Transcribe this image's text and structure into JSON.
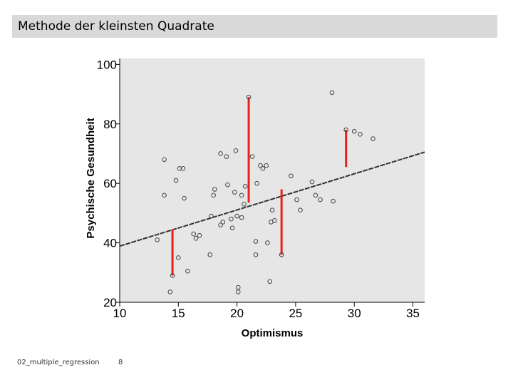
{
  "slide": {
    "title": "Methode der kleinsten Quadrate",
    "footer_left": "02_multiple_regression",
    "footer_page": "8"
  },
  "chart_data": {
    "type": "scatter",
    "title": "",
    "xlabel": "Optimismus",
    "ylabel": "Psychische Gesundheit",
    "xlim": [
      10,
      36
    ],
    "ylim": [
      20,
      102
    ],
    "xticks": [
      10,
      15,
      20,
      25,
      30,
      35
    ],
    "yticks": [
      20,
      40,
      60,
      80,
      100
    ],
    "grid": false,
    "colors": {
      "plot_background": "#e6e6e6",
      "points": "#444444",
      "regression_line": "#333333",
      "residuals": "#e8211f"
    },
    "regression_line": {
      "x": [
        10,
        36
      ],
      "y": [
        38.9,
        70.5
      ]
    },
    "residuals": [
      {
        "x": 14.5,
        "y_obs": 29,
        "y_fit": 44.7
      },
      {
        "x": 21,
        "y_obs": 89,
        "y_fit": 53.5
      },
      {
        "x": 23.8,
        "y_obs": 36,
        "y_fit": 58
      },
      {
        "x": 29.3,
        "y_obs": 78,
        "y_fit": 65.5
      }
    ],
    "points": [
      {
        "x": 13.2,
        "y": 41
      },
      {
        "x": 13.8,
        "y": 68
      },
      {
        "x": 13.8,
        "y": 56
      },
      {
        "x": 14.5,
        "y": 29
      },
      {
        "x": 14.3,
        "y": 23.5
      },
      {
        "x": 14.8,
        "y": 61
      },
      {
        "x": 15.1,
        "y": 65
      },
      {
        "x": 15.4,
        "y": 65
      },
      {
        "x": 15.0,
        "y": 35
      },
      {
        "x": 15.5,
        "y": 55
      },
      {
        "x": 15.8,
        "y": 30.5
      },
      {
        "x": 16.3,
        "y": 43
      },
      {
        "x": 16.5,
        "y": 41.5
      },
      {
        "x": 16.8,
        "y": 42.5
      },
      {
        "x": 17.7,
        "y": 36
      },
      {
        "x": 17.8,
        "y": 49
      },
      {
        "x": 18.0,
        "y": 56
      },
      {
        "x": 18.1,
        "y": 58
      },
      {
        "x": 18.6,
        "y": 70
      },
      {
        "x": 18.6,
        "y": 46
      },
      {
        "x": 18.8,
        "y": 47
      },
      {
        "x": 19.1,
        "y": 69
      },
      {
        "x": 19.2,
        "y": 59.5
      },
      {
        "x": 19.5,
        "y": 48
      },
      {
        "x": 19.6,
        "y": 45
      },
      {
        "x": 19.8,
        "y": 57
      },
      {
        "x": 19.9,
        "y": 71
      },
      {
        "x": 20.0,
        "y": 49
      },
      {
        "x": 20.1,
        "y": 25
      },
      {
        "x": 20.1,
        "y": 23.5
      },
      {
        "x": 20.4,
        "y": 48.5
      },
      {
        "x": 20.4,
        "y": 56
      },
      {
        "x": 20.6,
        "y": 53
      },
      {
        "x": 20.7,
        "y": 59
      },
      {
        "x": 21.0,
        "y": 89
      },
      {
        "x": 21.3,
        "y": 69
      },
      {
        "x": 21.6,
        "y": 40.5
      },
      {
        "x": 21.6,
        "y": 36
      },
      {
        "x": 21.7,
        "y": 60
      },
      {
        "x": 22.0,
        "y": 66
      },
      {
        "x": 22.2,
        "y": 65
      },
      {
        "x": 22.5,
        "y": 66
      },
      {
        "x": 22.6,
        "y": 40
      },
      {
        "x": 22.8,
        "y": 27
      },
      {
        "x": 22.9,
        "y": 47
      },
      {
        "x": 23.0,
        "y": 51
      },
      {
        "x": 23.2,
        "y": 47.5
      },
      {
        "x": 23.8,
        "y": 36
      },
      {
        "x": 24.6,
        "y": 62.5
      },
      {
        "x": 25.1,
        "y": 54.5
      },
      {
        "x": 25.4,
        "y": 51
      },
      {
        "x": 26.4,
        "y": 60.5
      },
      {
        "x": 26.7,
        "y": 56
      },
      {
        "x": 27.1,
        "y": 54.5
      },
      {
        "x": 28.1,
        "y": 90.5
      },
      {
        "x": 28.2,
        "y": 54
      },
      {
        "x": 29.3,
        "y": 78
      },
      {
        "x": 30.0,
        "y": 77.5
      },
      {
        "x": 30.5,
        "y": 76.5
      },
      {
        "x": 31.6,
        "y": 75
      }
    ]
  }
}
